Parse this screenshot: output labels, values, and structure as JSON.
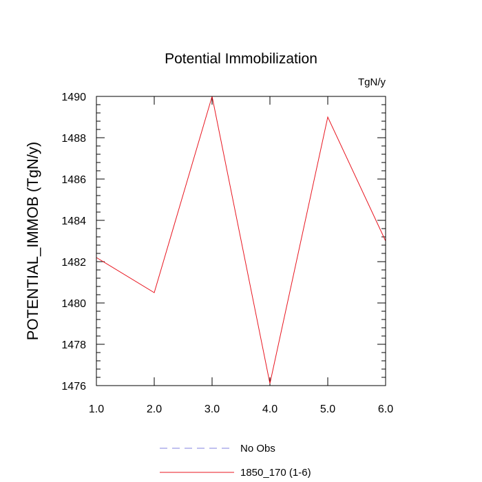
{
  "chart_data": {
    "type": "line",
    "title": "Potential Immobilization",
    "units_label": "TgN/y",
    "xlabel": "",
    "ylabel": "POTENTIAL_IMMOB  (TgN/y)",
    "xlim": [
      1.0,
      6.0
    ],
    "ylim": [
      1476,
      1490
    ],
    "x_ticks": [
      1.0,
      2.0,
      3.0,
      4.0,
      5.0,
      6.0
    ],
    "x_tick_labels": [
      "1.0",
      "2.0",
      "3.0",
      "4.0",
      "5.0",
      "6.0"
    ],
    "y_ticks": [
      1476,
      1478,
      1480,
      1482,
      1484,
      1486,
      1488,
      1490
    ],
    "y_tick_labels": [
      "1476",
      "1478",
      "1480",
      "1482",
      "1484",
      "1486",
      "1488",
      "1490"
    ],
    "series": [
      {
        "name": "1850_170 (1-6)",
        "color": "#e8141e",
        "style": "solid",
        "x": [
          1.0,
          2.0,
          3.0,
          4.0,
          5.0,
          6.0
        ],
        "values": [
          1482.2,
          1480.5,
          1490.0,
          1476.1,
          1489.0,
          1483.0
        ]
      }
    ],
    "legend": [
      {
        "label": "No Obs",
        "color": "#8080e0",
        "style": "dashed"
      },
      {
        "label": "1850_170 (1-6)",
        "color": "#e8141e",
        "style": "solid"
      }
    ],
    "legend_position": "bottom-center"
  }
}
